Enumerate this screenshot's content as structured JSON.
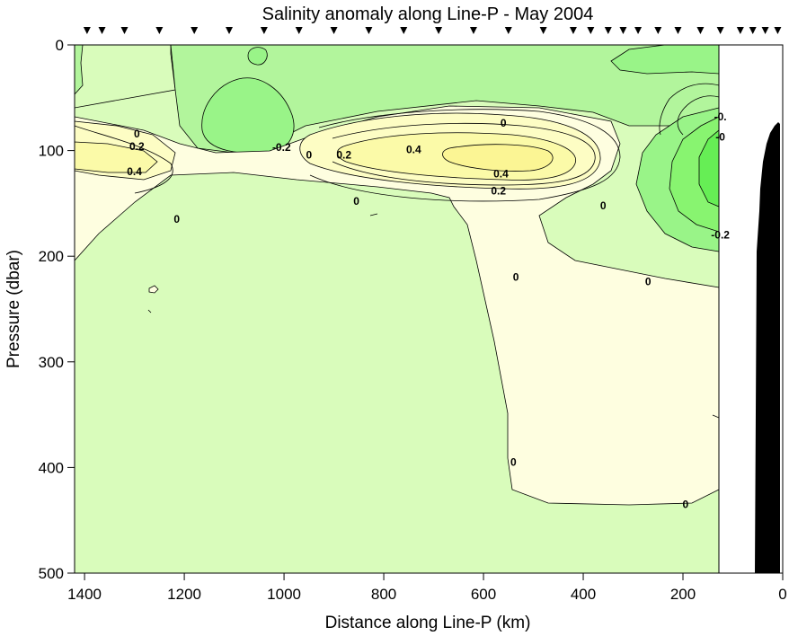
{
  "chart_data": {
    "type": "contour",
    "title": "Salinity anomaly along Line-P - May 2004",
    "xlabel": "Distance along Line-P (km)",
    "ylabel": "Pressure (dbar)",
    "xlim": [
      1420,
      0
    ],
    "ylim": [
      0,
      500
    ],
    "x_ticks": [
      1400,
      1200,
      1000,
      800,
      600,
      400,
      200,
      0
    ],
    "y_ticks": [
      0,
      100,
      200,
      300,
      400,
      500
    ],
    "station_markers_km": [
      1395,
      1365,
      1320,
      1250,
      1180,
      1110,
      1040,
      970,
      900,
      830,
      760,
      690,
      620,
      550,
      480,
      420,
      385,
      350,
      320,
      290,
      250,
      210,
      165,
      125,
      85,
      60,
      35,
      10
    ],
    "levels": [
      -0.2,
      -0.1,
      0,
      0.1,
      0.2,
      0.3,
      0.4,
      0.5
    ],
    "level_colors": {
      "-0.4": "#66ee55",
      "-0.3": "#88f470",
      "-0.2": "#99f488",
      "-0.1": "#b2f59c",
      "0": "#d9fcbb",
      "0.1": "#fefee0",
      "0.2": "#fdfdc4",
      "0.3": "#fbfaa8",
      "0.4": "#fbf594"
    },
    "contour_labels": [
      {
        "x": 1295,
        "y": 84,
        "text": "0"
      },
      {
        "x": 1295,
        "y": 96,
        "text": "0.2"
      },
      {
        "x": 1300,
        "y": 120,
        "text": "0.4"
      },
      {
        "x": 1215,
        "y": 165,
        "text": "0"
      },
      {
        "x": 1005,
        "y": 97,
        "text": "-0.2"
      },
      {
        "x": 950,
        "y": 104,
        "text": "0"
      },
      {
        "x": 880,
        "y": 104,
        "text": "0.2"
      },
      {
        "x": 740,
        "y": 99,
        "text": "0.4"
      },
      {
        "x": 560,
        "y": 74,
        "text": "0"
      },
      {
        "x": 565,
        "y": 122,
        "text": "0.4"
      },
      {
        "x": 570,
        "y": 138,
        "text": "0.2"
      },
      {
        "x": 855,
        "y": 148,
        "text": "0"
      },
      {
        "x": 360,
        "y": 152,
        "text": "0"
      },
      {
        "x": 535,
        "y": 220,
        "text": "0"
      },
      {
        "x": 540,
        "y": 395,
        "text": "0"
      },
      {
        "x": 270,
        "y": 224,
        "text": "0"
      },
      {
        "x": 195,
        "y": 435,
        "text": "0"
      },
      {
        "x": 125,
        "y": 68,
        "text": "-0."
      },
      {
        "x": 125,
        "y": 87,
        "text": "-0"
      },
      {
        "x": 125,
        "y": 180,
        "text": "-0.2"
      }
    ],
    "bathymetry_color": "#000000",
    "no_data_color": "#ffffff"
  }
}
